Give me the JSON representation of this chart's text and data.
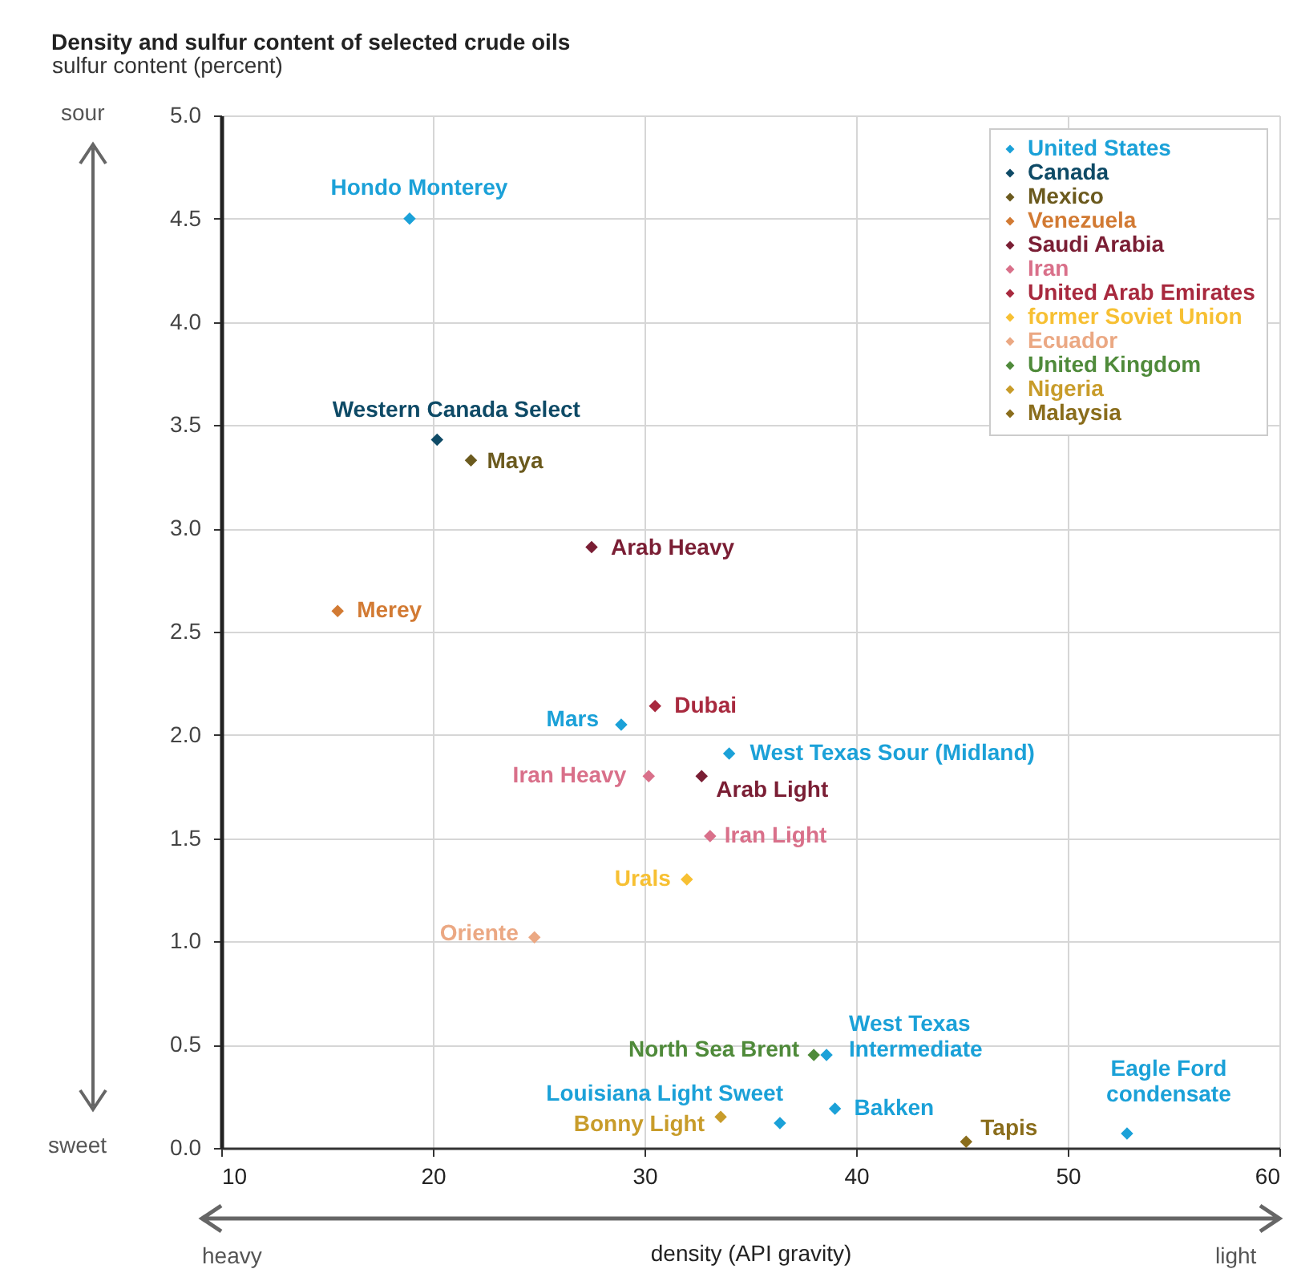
{
  "chart_data": {
    "type": "scatter",
    "title": "Density and sulfur content of selected crude oils",
    "ylabel": "sulfur content (percent)",
    "xlabel": "density (API gravity)",
    "xlim": [
      10,
      60
    ],
    "xticks": [
      10,
      20,
      30,
      40,
      50,
      60
    ],
    "ylim": [
      0,
      5
    ],
    "yticks": [
      {
        "value": 0,
        "label": "0.0"
      },
      0.5,
      {
        "value": 1,
        "label": "1.0"
      },
      1.5,
      {
        "value": 2,
        "label": "2.0"
      },
      2.5,
      {
        "value": 3,
        "label": "3.0"
      },
      3.5,
      {
        "value": 4,
        "label": "4.0"
      },
      4.5,
      {
        "value": 5,
        "label": "5.0"
      }
    ],
    "grid": true,
    "legend": "top right",
    "marker": "diamond",
    "series": [
      {
        "name": "United States",
        "color": "#1ba1d8",
        "x": [
          18.9,
          28.9,
          34.0,
          38.6,
          36.4,
          39.0,
          52.8
        ],
        "values": [
          4.5,
          2.05,
          1.91,
          0.45,
          0.12,
          0.19,
          0.07
        ]
      },
      {
        "name": "Canada",
        "color": "#0e4a66",
        "x": [
          20.2
        ],
        "values": [
          3.43
        ]
      },
      {
        "name": "Mexico",
        "color": "#6b5a1e",
        "x": [
          21.8
        ],
        "values": [
          3.33
        ]
      },
      {
        "name": "Venezuela",
        "color": "#d27a33",
        "x": [
          15.5
        ],
        "values": [
          2.6
        ]
      },
      {
        "name": "Saudi Arabia",
        "color": "#7a1e34",
        "x": [
          27.5,
          32.7
        ],
        "values": [
          2.91,
          1.8
        ]
      },
      {
        "name": "Iran",
        "color": "#d9708a",
        "x": [
          30.2,
          33.1
        ],
        "values": [
          1.8,
          1.51
        ]
      },
      {
        "name": "United Arab Emirates",
        "color": "#a8293e",
        "x": [
          30.5
        ],
        "values": [
          2.14
        ]
      },
      {
        "name": "former Soviet Union",
        "color": "#f7c033",
        "x": [
          32.0
        ],
        "values": [
          1.3
        ]
      },
      {
        "name": "Ecuador",
        "color": "#eba883",
        "x": [
          24.8
        ],
        "values": [
          1.02
        ]
      },
      {
        "name": "United Kingdom",
        "color": "#4f8a3a",
        "x": [
          38.0
        ],
        "values": [
          0.45
        ]
      },
      {
        "name": "Nigeria",
        "color": "#c89c2a",
        "x": [
          33.6
        ],
        "values": [
          0.15
        ]
      },
      {
        "name": "Malaysia",
        "color": "#8a6d1c",
        "x": [
          45.2
        ],
        "values": [
          0.03
        ]
      }
    ],
    "annotations": [
      {
        "text": "Hondo Monterey",
        "x": 18.9,
        "y": 4.5
      },
      {
        "text": "Western Canada Select",
        "x": 20.2,
        "y": 3.43
      },
      {
        "text": "Maya",
        "x": 21.8,
        "y": 3.33
      },
      {
        "text": "Arab Heavy",
        "x": 27.5,
        "y": 2.91
      },
      {
        "text": "Merey",
        "x": 15.5,
        "y": 2.6
      },
      {
        "text": "Dubai",
        "x": 30.5,
        "y": 2.14
      },
      {
        "text": "Mars",
        "x": 28.9,
        "y": 2.05
      },
      {
        "text": "West Texas Sour (Midland)",
        "x": 34.0,
        "y": 1.91
      },
      {
        "text": "Iran Heavy",
        "x": 30.2,
        "y": 1.8
      },
      {
        "text": "Arab Light",
        "x": 32.7,
        "y": 1.8
      },
      {
        "text": "Iran Light",
        "x": 33.1,
        "y": 1.51
      },
      {
        "text": "Urals",
        "x": 32.0,
        "y": 1.3
      },
      {
        "text": "Oriente",
        "x": 24.8,
        "y": 1.02
      },
      {
        "text": "North Sea Brent",
        "x": 38.0,
        "y": 0.45
      },
      {
        "text": "West Texas\nIntermediate",
        "x": 38.6,
        "y": 0.45
      },
      {
        "text": "Louisiana Light Sweet",
        "x": 36.4,
        "y": 0.12
      },
      {
        "text": "Bonny Light",
        "x": 33.6,
        "y": 0.15
      },
      {
        "text": "Bakken",
        "x": 39.0,
        "y": 0.19
      },
      {
        "text": "Tapis",
        "x": 45.2,
        "y": 0.03
      },
      {
        "text": "Eagle Ford\ncondensate",
        "x": 52.8,
        "y": 0.07
      },
      "sour",
      "sweet",
      "heavy",
      "light"
    ]
  }
}
